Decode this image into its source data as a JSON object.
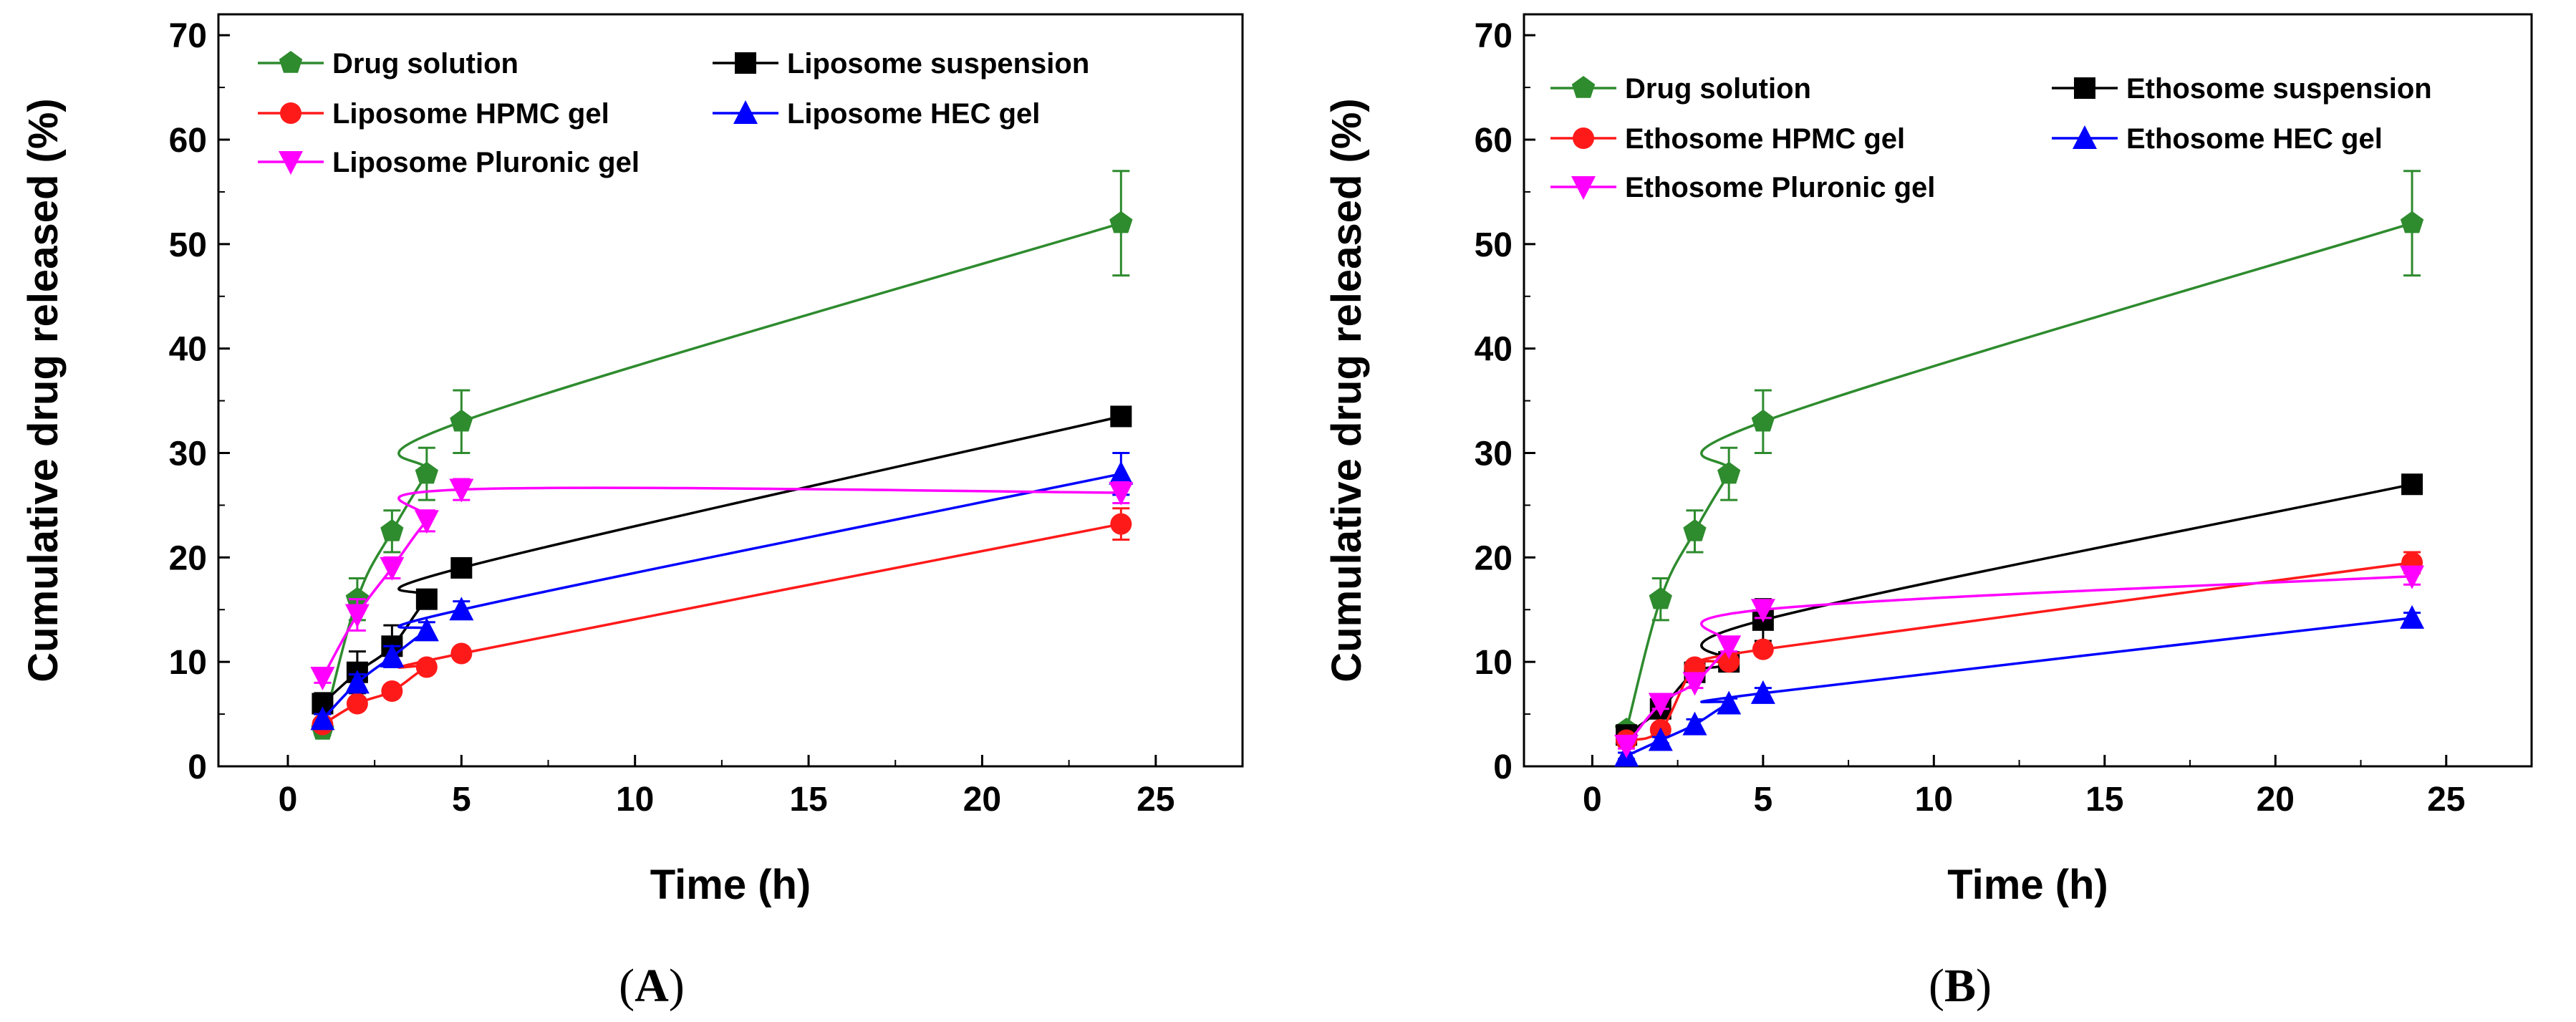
{
  "chart_data": [
    {
      "type": "line",
      "panel_label": "A",
      "xlabel": "Time (h)",
      "ylabel": "Cumulative drug released (%)",
      "xlim": [
        -2,
        27.5
      ],
      "ylim": [
        0,
        72
      ],
      "xticks": [
        0,
        5,
        10,
        15,
        20,
        25
      ],
      "yticks": [
        0,
        10,
        20,
        30,
        40,
        50,
        60,
        70
      ],
      "x": [
        1,
        2,
        3,
        4,
        5,
        24
      ],
      "legend_position": "top-left",
      "series": [
        {
          "name": "Drug solution",
          "color": "#2e8b2e",
          "marker": "pentagon",
          "values": [
            3.5,
            16,
            22.5,
            28,
            33,
            52
          ],
          "errors": [
            0.5,
            2,
            2,
            2.5,
            3,
            5
          ]
        },
        {
          "name": "Liposome suspension",
          "color": "#000000",
          "marker": "square",
          "values": [
            6,
            9,
            11.5,
            16,
            19,
            33.5
          ],
          "errors": [
            1,
            2,
            2,
            0.5,
            0.5,
            0.5
          ]
        },
        {
          "name": "Liposome HPMC gel",
          "color": "#ff1a1a",
          "marker": "circle",
          "values": [
            4,
            6,
            7.2,
            9.5,
            10.8,
            23.2
          ],
          "errors": [
            0.4,
            0.4,
            0.5,
            0.5,
            0.5,
            1.5
          ]
        },
        {
          "name": "Liposome HEC gel",
          "color": "#0000ff",
          "marker": "triangle-up",
          "values": [
            4.5,
            8,
            10.5,
            13,
            15,
            28
          ],
          "errors": [
            0.5,
            0.8,
            1,
            0.8,
            0.8,
            2
          ]
        },
        {
          "name": "Liposome Pluronic gel",
          "color": "#ff00ff",
          "marker": "triangle-down",
          "values": [
            8.5,
            14.5,
            19,
            23.5,
            26.5,
            26.2
          ],
          "errors": [
            0.5,
            1.5,
            1,
            1,
            1,
            1
          ]
        }
      ]
    },
    {
      "type": "line",
      "panel_label": "B",
      "xlabel": "Time (h)",
      "ylabel": "Cumulative drug released (%)",
      "xlim": [
        -2,
        27.5
      ],
      "ylim": [
        0,
        72
      ],
      "xticks": [
        0,
        5,
        10,
        15,
        20,
        25
      ],
      "yticks": [
        0,
        10,
        20,
        30,
        40,
        50,
        60,
        70
      ],
      "x": [
        1,
        2,
        3,
        4,
        5,
        24
      ],
      "legend_position": "top-left",
      "series": [
        {
          "name": "Drug solution",
          "color": "#2e8b2e",
          "marker": "pentagon",
          "values": [
            3.5,
            16,
            22.5,
            28,
            33,
            52
          ],
          "errors": [
            0.5,
            2,
            2,
            2.5,
            3,
            5
          ]
        },
        {
          "name": "Ethosome suspension",
          "color": "#000000",
          "marker": "square",
          "values": [
            3,
            5.5,
            9,
            10,
            14,
            27
          ],
          "errors": [
            0.5,
            0.5,
            0.5,
            0.5,
            2,
            0.5
          ]
        },
        {
          "name": "Ethosome HPMC gel",
          "color": "#ff1a1a",
          "marker": "circle",
          "values": [
            2.5,
            3.5,
            9.5,
            10,
            11.2,
            19.5
          ],
          "errors": [
            0.3,
            0.5,
            0.5,
            0.5,
            0.5,
            1
          ]
        },
        {
          "name": "Ethosome HEC gel",
          "color": "#0000ff",
          "marker": "triangle-up",
          "values": [
            1,
            2.5,
            4,
            6,
            7,
            14.2
          ],
          "errors": [
            0.3,
            0.3,
            0.5,
            0.5,
            0.5,
            0.5
          ]
        },
        {
          "name": "Ethosome Pluronic gel",
          "color": "#ff00ff",
          "marker": "triangle-down",
          "values": [
            2,
            6,
            8,
            11.5,
            15,
            18.2
          ],
          "errors": [
            0.3,
            0.5,
            0.5,
            0.5,
            0.8,
            0.8
          ]
        }
      ]
    }
  ]
}
